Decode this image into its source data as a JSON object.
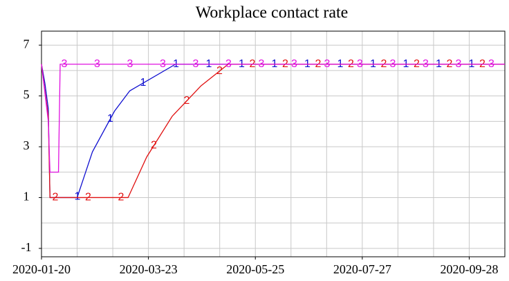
{
  "chart_data": {
    "type": "line",
    "title": "Workplace contact rate",
    "xlim": [
      "2020-01-20",
      "2020-10-19"
    ],
    "xticks": [
      "2020-01-20",
      "2020-03-23",
      "2020-05-25",
      "2020-07-27",
      "2020-09-28"
    ],
    "x_grid": [
      "2020-01-20",
      "2020-02-10",
      "2020-03-02",
      "2020-03-23",
      "2020-04-13",
      "2020-05-04",
      "2020-05-25",
      "2020-06-15",
      "2020-07-06",
      "2020-07-27",
      "2020-08-17",
      "2020-09-07",
      "2020-09-28",
      "2020-10-19"
    ],
    "ylim": [
      -1.33,
      7.55
    ],
    "yticks": [
      -1,
      1,
      3,
      5,
      7
    ],
    "y_grid": [
      -1,
      0,
      1,
      2,
      3,
      4,
      5,
      6,
      7
    ],
    "grid": true,
    "series": [
      {
        "name": "1",
        "color": "#1010d0",
        "x": [
          "2020-01-20",
          "2020-01-22",
          "2020-01-24",
          "2020-01-25",
          "2020-02-10",
          "2020-02-19",
          "2020-03-03",
          "2020-03-12",
          "2020-04-08",
          "2020-10-19"
        ],
        "values": [
          6.25,
          5.5,
          4.5,
          1,
          1,
          2.8,
          4.4,
          5.2,
          6.25,
          6.25
        ]
      },
      {
        "name": "2",
        "color": "#e01010",
        "x": [
          "2020-01-20",
          "2020-01-22",
          "2020-01-24",
          "2020-01-25",
          "2020-03-11",
          "2020-03-22",
          "2020-04-06",
          "2020-04-23",
          "2020-05-09",
          "2020-10-19"
        ],
        "values": [
          6.25,
          5.2,
          4.2,
          1,
          1,
          2.6,
          4.2,
          5.4,
          6.25,
          6.25
        ]
      },
      {
        "name": "3",
        "color": "#e010e0",
        "x": [
          "2020-01-20",
          "2020-01-24",
          "2020-01-25",
          "2020-01-30",
          "2020-01-31",
          "2020-10-19"
        ],
        "values": [
          6.25,
          4,
          2,
          2,
          6.25,
          6.25
        ]
      }
    ]
  }
}
